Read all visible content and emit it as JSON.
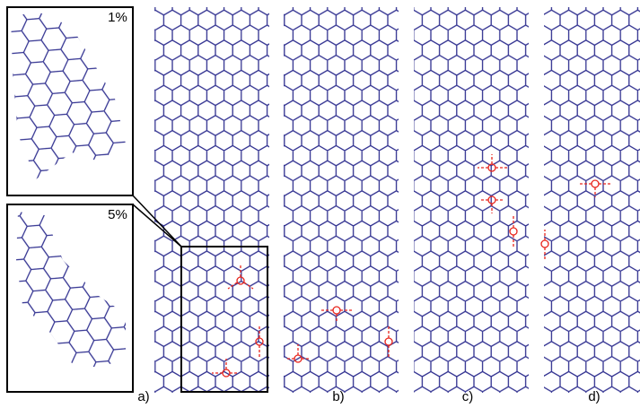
{
  "insets": {
    "top_label": "1%",
    "bottom_label": "5%"
  },
  "panels": {
    "a": "a)",
    "b": "b)",
    "c": "c)",
    "d": "d)"
  }
}
